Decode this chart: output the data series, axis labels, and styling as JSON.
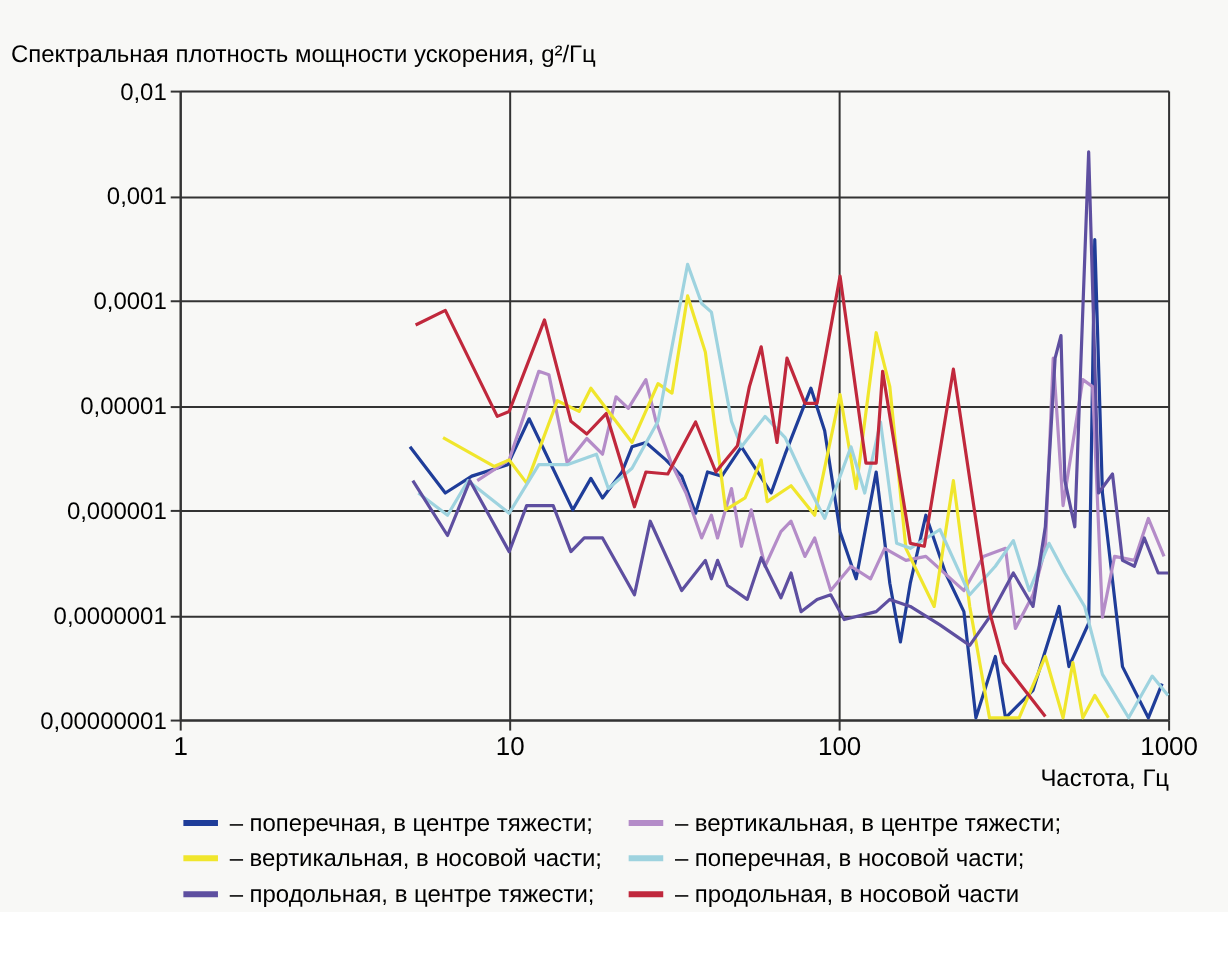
{
  "chart_data": {
    "type": "line",
    "ylabel": "Спектральная плотность мощности ускорения, g²/Гц",
    "xlabel": "Частота, Гц",
    "log": "xy",
    "grid": true,
    "legend": "bottom",
    "line_style": "solid",
    "marker": "none",
    "xlim": [
      1,
      1000
    ],
    "xticks": [
      1,
      10,
      100,
      1000
    ],
    "ylim": [
      1e-08,
      0.01
    ],
    "yticks": [
      {
        "value": 1e-08,
        "label": "0,00000001"
      },
      {
        "value": 1e-07,
        "label": "0,0000001"
      },
      {
        "value": 1e-06,
        "label": "0,000001"
      },
      {
        "value": 1e-05,
        "label": "0,00001"
      },
      {
        "value": 0.0001,
        "label": "0,0001"
      },
      {
        "value": 0.001,
        "label": "0,001"
      },
      {
        "value": 0.01,
        "label": "0,01"
      }
    ],
    "series": [
      {
        "name": "– поперечная, в центре тяжести;",
        "color": "#1f3d99",
        "x": [
          5,
          6.4,
          7.7,
          9.9,
          11.5,
          15.6,
          17.7,
          19.2,
          22,
          23.6,
          26,
          29.9,
          33.4,
          36.8,
          40,
          44.2,
          50.7,
          55.8,
          62.4,
          68.8,
          82.4,
          90.7,
          101,
          113,
          130,
          143,
          154,
          165,
          184,
          211,
          240,
          261,
          299,
          321,
          389,
          467,
          500,
          574,
          599,
          632,
          727,
          871,
          959
        ],
        "values": [
          4e-06,
          1.45e-06,
          2.1e-06,
          2.7e-06,
          7.4e-06,
          1e-06,
          2e-06,
          1.3e-06,
          2.3e-06,
          4e-06,
          4.4e-06,
          3e-06,
          2.1e-06,
          9.3e-07,
          2.3e-06,
          2.1e-06,
          4e-06,
          2.5e-06,
          1.45e-06,
          3.4e-06,
          1.45e-05,
          5.7e-06,
          6.2e-07,
          2.2e-07,
          2.3e-06,
          2e-07,
          5.5e-08,
          2e-07,
          8.9e-07,
          2.5e-07,
          1.07e-07,
          1.04e-08,
          4e-08,
          1.04e-08,
          1.9e-08,
          1.2e-07,
          3.2e-08,
          8.3e-08,
          0.00038,
          1.45e-06,
          3.2e-08,
          1.04e-08,
          2.2e-08
        ]
      },
      {
        "name": "– вертикальная, в центре тяжести;",
        "color": "#b48cc8",
        "x": [
          8,
          10,
          12.3,
          13.2,
          15,
          17.2,
          19.2,
          21.1,
          23,
          26,
          27.9,
          31.2,
          34.4,
          38.4,
          41.1,
          42.9,
          47.3,
          50.7,
          54.3,
          59.8,
          66.8,
          71.7,
          79,
          84.6,
          94.6,
          109,
          125,
          138,
          160,
          184,
          240,
          275,
          321,
          344,
          389,
          424,
          448,
          480,
          551,
          590,
          632,
          688,
          790,
          871,
          972
        ],
        "values": [
          1.9e-06,
          3e-06,
          2.1e-05,
          1.95e-05,
          2.8e-06,
          4.8e-06,
          3.4e-06,
          1.2e-05,
          9.3e-06,
          1.75e-05,
          7e-06,
          2.7e-06,
          1.45e-06,
          5.4e-07,
          8.9e-07,
          5.4e-07,
          1.6e-06,
          4.5e-07,
          1e-06,
          2.9e-07,
          6.2e-07,
          7.8e-07,
          3.6e-07,
          5.4e-07,
          1.7e-07,
          2.9e-07,
          2.2e-07,
          4.3e-07,
          3.3e-07,
          3.6e-07,
          1.7e-07,
          3.6e-07,
          4.3e-07,
          7.4e-08,
          1.55e-07,
          4.3e-07,
          2.8e-05,
          1.1e-06,
          1.75e-05,
          1.5e-05,
          9.5e-08,
          3.6e-07,
          3.3e-07,
          8.3e-07,
          3.6e-07
        ]
      },
      {
        "name": "– вертикальная, в носовой части;",
        "color": "#f0e62c",
        "x": [
          6.3,
          9,
          10,
          11.3,
          14,
          16.3,
          17.7,
          23.6,
          28.3,
          31.2,
          34.8,
          39.4,
          45.4,
          52,
          58.2,
          60.7,
          71.7,
          84.6,
          101,
          113,
          130,
          143,
          160,
          195,
          223,
          250,
          287,
          353,
          424,
          480,
          514,
          551,
          599,
          659
        ],
        "values": [
          4.9e-06,
          2.6e-06,
          3e-06,
          1.8e-06,
          1.1e-05,
          8.7e-06,
          1.45e-05,
          4.4e-06,
          1.6e-05,
          1.3e-05,
          0.00011,
          3.2e-05,
          1e-06,
          1.3e-06,
          3e-06,
          1.2e-06,
          1.7e-06,
          8.9e-07,
          1.26e-05,
          1.6e-06,
          4.9e-05,
          1.5e-05,
          4.3e-07,
          1.2e-07,
          1.9e-06,
          1.2e-07,
          1.04e-08,
          1.04e-08,
          4e-08,
          1.04e-08,
          3.5e-08,
          1.04e-08,
          1.7e-08,
          1.04e-08
        ]
      },
      {
        "name": "– поперечная, в носовой части;",
        "color": "#9ed3df",
        "x": [
          5.3,
          6.5,
          7.5,
          10,
          12.3,
          15,
          18.4,
          20,
          23.6,
          28.3,
          31.2,
          34.8,
          38.4,
          41.1,
          47.3,
          50.7,
          59.8,
          68.8,
          76.9,
          90.7,
          109,
          120,
          134,
          150,
          165,
          203,
          250,
          299,
          339,
          379,
          435,
          486,
          558,
          632,
          759,
          895,
          1000
        ],
        "values": [
          1.45e-06,
          8.9e-07,
          1.9e-06,
          9.3e-07,
          2.7e-06,
          2.7e-06,
          3.4e-06,
          1.6e-06,
          2.5e-06,
          7e-06,
          3.6e-05,
          0.00022,
          9.3e-05,
          7.7e-05,
          7e-06,
          4e-06,
          7.8e-06,
          4.9e-06,
          2.3e-06,
          8.3e-07,
          4e-06,
          1.45e-06,
          6.9e-06,
          4.8e-07,
          4.3e-07,
          6.5e-07,
          1.55e-07,
          2.9e-07,
          5.1e-07,
          1.7e-07,
          4.8e-07,
          2.5e-07,
          1.2e-07,
          2.7e-08,
          1.04e-08,
          2.6e-08,
          1.7e-08
        ]
      },
      {
        "name": "– продольная, в центре тяжести;",
        "color": "#5e4fa0",
        "x": [
          5.1,
          6.5,
          7.6,
          10,
          11.3,
          13.6,
          15.4,
          16.9,
          19.2,
          24,
          26.8,
          33.4,
          39.4,
          41.1,
          42.9,
          46,
          52.8,
          58.2,
          66.8,
          71.7,
          76.9,
          86,
          94.6,
          104,
          130,
          143,
          165,
          203,
          250,
          287,
          339,
          389,
          424,
          454,
          473,
          486,
          521,
          574,
          615,
          678,
          727,
          790,
          847,
          933,
          1000
        ],
        "values": [
          1.9e-06,
          5.7e-07,
          1.9e-06,
          4e-07,
          1.1e-06,
          1.1e-06,
          4e-07,
          5.4e-07,
          5.4e-07,
          1.55e-07,
          7.8e-07,
          1.7e-07,
          3.3e-07,
          2.2e-07,
          3.3e-07,
          1.9e-07,
          1.4e-07,
          3.5e-07,
          1.45e-07,
          2.5e-07,
          1.07e-07,
          1.4e-07,
          1.55e-07,
          9e-08,
          1.07e-07,
          1.4e-07,
          1.2e-07,
          8e-08,
          5.1e-08,
          9.5e-08,
          2.5e-07,
          1.2e-07,
          6.9e-07,
          2.8e-05,
          4.6e-05,
          1.9e-06,
          6.9e-07,
          0.0026,
          1.45e-06,
          2.2e-06,
          3.3e-07,
          2.9e-07,
          5.4e-07,
          2.5e-07,
          2.5e-07
        ]
      },
      {
        "name": "– продольная, в носовой части",
        "color": "#c0283c",
        "x": [
          5.2,
          6.4,
          9.2,
          10,
          12.8,
          15.4,
          17.2,
          19.7,
          24,
          26,
          30.3,
          36.8,
          42.4,
          49.3,
          53.6,
          58.2,
          65,
          69.7,
          79,
          86,
          101,
          121,
          130,
          136,
          165,
          182,
          223,
          287,
          316,
          424
        ],
        "values": [
          5.8e-05,
          8e-05,
          7.8e-06,
          8.7e-06,
          6.5e-05,
          7e-06,
          5.3e-06,
          8.3e-06,
          1.07e-06,
          2.3e-06,
          2.2e-06,
          6.9e-06,
          2.3e-06,
          4.1e-06,
          1.5e-05,
          3.6e-05,
          4.4e-06,
          2.8e-05,
          1.04e-05,
          1.04e-05,
          0.00017,
          2.8e-06,
          2.8e-06,
          2.1e-05,
          4.8e-07,
          4.5e-07,
          2.2e-05,
          1.07e-07,
          3.5e-08,
          1.07e-08
        ]
      }
    ]
  }
}
